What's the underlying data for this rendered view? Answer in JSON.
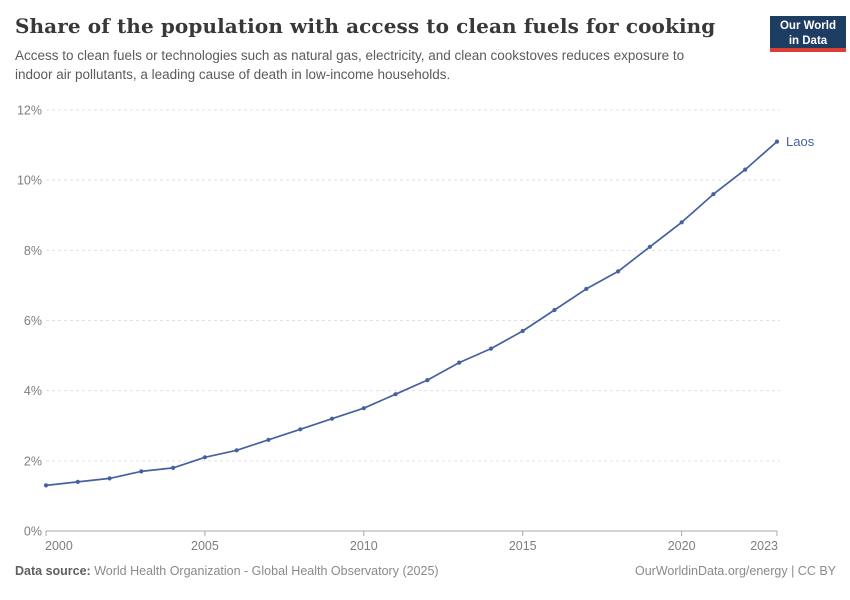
{
  "header": {
    "title": "Share of the population with access to clean fuels for cooking",
    "subtitle": "Access to clean fuels or technologies such as natural gas, electricity, and clean cookstoves reduces exposure to indoor air pollutants, a leading cause of death in low-income households.",
    "logo": {
      "line1": "Our World",
      "line2": "in Data",
      "bg_color": "#1d3d63",
      "stripe_color": "#dc3e32"
    }
  },
  "chart_data": {
    "type": "line",
    "title": "Share of the population with access to clean fuels for cooking",
    "xlabel": "",
    "ylabel": "",
    "x": [
      2000,
      2001,
      2002,
      2003,
      2004,
      2005,
      2006,
      2007,
      2008,
      2009,
      2010,
      2011,
      2012,
      2013,
      2014,
      2015,
      2016,
      2017,
      2018,
      2019,
      2020,
      2021,
      2022,
      2023
    ],
    "series": [
      {
        "name": "Laos",
        "color": "#46619f",
        "values": [
          1.3,
          1.4,
          1.5,
          1.7,
          1.8,
          2.1,
          2.3,
          2.6,
          2.9,
          3.2,
          3.5,
          3.9,
          4.3,
          4.8,
          5.2,
          5.7,
          6.3,
          6.9,
          7.4,
          8.1,
          8.8,
          9.6,
          10.3,
          11.1
        ]
      }
    ],
    "xlim": [
      2000,
      2023
    ],
    "ylim": [
      0,
      12
    ],
    "yticks": [
      0,
      2,
      4,
      6,
      8,
      10,
      12
    ],
    "ytick_suffix": "%",
    "xticks": [
      2000,
      2005,
      2010,
      2015,
      2020,
      2023
    ],
    "grid": "horizontal-dashed",
    "legend_position": "end-of-line-label",
    "axis_color": "#a8a8a8",
    "gridline_color": "#e0e0e0"
  },
  "footer": {
    "source_label": "Data source:",
    "source_text": " World Health Organization - Global Health Observatory (2025)",
    "right_text": "OurWorldinData.org/energy | CC BY"
  }
}
